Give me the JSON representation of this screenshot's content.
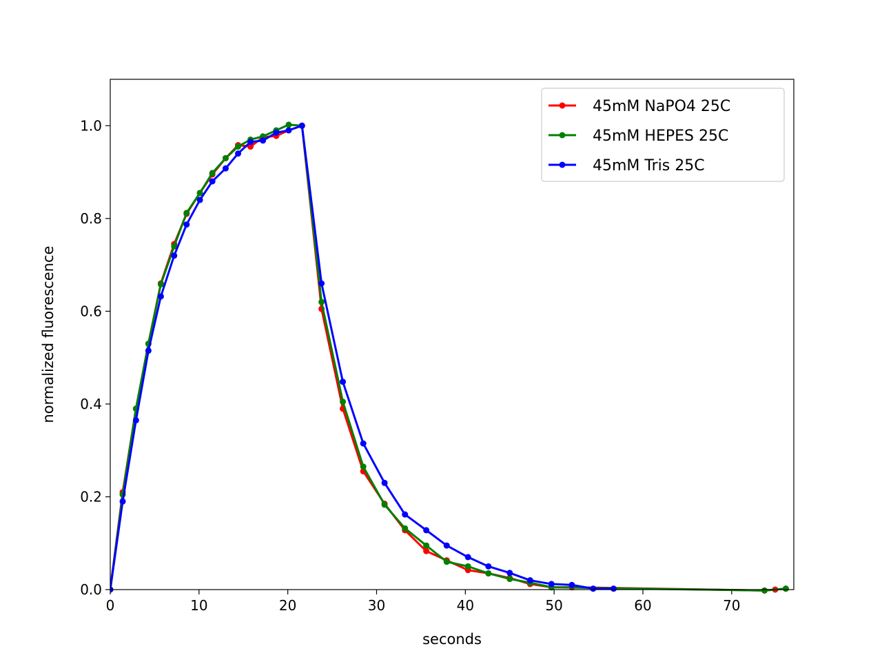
{
  "chart_data": {
    "type": "line",
    "title": "",
    "xlabel": "seconds",
    "ylabel": "normalized fluorescence",
    "xlim": [
      0,
      77
    ],
    "ylim": [
      0,
      1.1
    ],
    "xticks": [
      0,
      10,
      20,
      30,
      40,
      50,
      60,
      70
    ],
    "yticks": [
      0.0,
      0.2,
      0.4,
      0.6,
      0.8,
      1.0
    ],
    "xtick_labels": [
      "0",
      "10",
      "20",
      "30",
      "40",
      "50",
      "60",
      "70"
    ],
    "ytick_labels": [
      "0.0",
      "0.2",
      "0.4",
      "0.6",
      "0.8",
      "1.0"
    ],
    "grid": false,
    "legend_position": "top-right",
    "series": [
      {
        "name": "45mM NaPO4 25C",
        "color": "#ff0000",
        "x": [
          0,
          1.4,
          2.9,
          4.3,
          5.7,
          7.2,
          8.6,
          10.1,
          11.5,
          13.0,
          14.4,
          15.8,
          17.2,
          18.7,
          20.1,
          21.6,
          23.8,
          26.2,
          28.5,
          30.9,
          33.2,
          35.6,
          37.9,
          40.3,
          42.6,
          45.0,
          47.3,
          49.7,
          52.0,
          73.7,
          74.9,
          76.1
        ],
        "y": [
          0.0,
          0.21,
          0.39,
          0.53,
          0.66,
          0.745,
          0.81,
          0.855,
          0.895,
          0.93,
          0.958,
          0.955,
          0.975,
          0.978,
          0.99,
          1.0,
          0.605,
          0.39,
          0.255,
          0.185,
          0.128,
          0.083,
          0.063,
          0.042,
          0.035,
          0.025,
          0.012,
          0.005,
          0.005,
          -0.002,
          0.0,
          0.002
        ]
      },
      {
        "name": "45mM HEPES 25C",
        "color": "#008000",
        "x": [
          0,
          1.4,
          2.9,
          4.3,
          5.7,
          7.2,
          8.6,
          10.1,
          11.5,
          13.0,
          14.4,
          15.8,
          17.2,
          18.7,
          20.1,
          21.6,
          23.8,
          26.2,
          28.5,
          30.9,
          33.2,
          35.6,
          37.9,
          40.3,
          42.6,
          45.0,
          47.3,
          49.7,
          73.7,
          76.1
        ],
        "y": [
          0.0,
          0.205,
          0.39,
          0.53,
          0.658,
          0.74,
          0.812,
          0.855,
          0.898,
          0.93,
          0.955,
          0.97,
          0.977,
          0.99,
          1.002,
          1.0,
          0.62,
          0.405,
          0.265,
          0.183,
          0.132,
          0.095,
          0.06,
          0.05,
          0.035,
          0.023,
          0.015,
          0.005,
          -0.002,
          0.002
        ]
      },
      {
        "name": "45mM Tris 25C",
        "color": "#0000ff",
        "x": [
          0,
          1.4,
          2.9,
          4.3,
          5.7,
          7.2,
          8.6,
          10.1,
          11.5,
          13.0,
          14.4,
          15.8,
          17.2,
          18.7,
          20.1,
          21.6,
          23.8,
          26.2,
          28.5,
          30.9,
          33.2,
          35.6,
          37.9,
          40.3,
          42.6,
          45.0,
          47.3,
          49.7,
          52.0,
          54.4,
          56.7
        ],
        "y": [
          0.0,
          0.19,
          0.365,
          0.515,
          0.632,
          0.72,
          0.787,
          0.84,
          0.88,
          0.908,
          0.94,
          0.965,
          0.968,
          0.985,
          0.99,
          1.0,
          0.66,
          0.448,
          0.315,
          0.23,
          0.162,
          0.128,
          0.095,
          0.07,
          0.05,
          0.036,
          0.02,
          0.012,
          0.01,
          0.002,
          0.002
        ]
      }
    ]
  }
}
